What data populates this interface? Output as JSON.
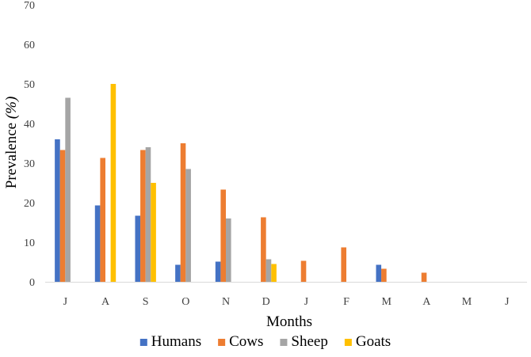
{
  "chart_data": {
    "type": "bar",
    "title": "",
    "xlabel": "Months",
    "ylabel_main": "Prevalence ",
    "ylabel_unit": "(%)",
    "ylim": [
      0,
      70
    ],
    "yticks": [
      0,
      10,
      20,
      30,
      40,
      50,
      60,
      70
    ],
    "grid": false,
    "legend_position": "bottom",
    "categories": [
      "J",
      "A",
      "S",
      "O",
      "N",
      "D",
      "J",
      "F",
      "M",
      "A",
      "M",
      "J"
    ],
    "series": [
      {
        "name": "Humans",
        "color": "#4472C4",
        "values": [
          36.0,
          19.3,
          16.7,
          4.3,
          5.1,
          0,
          0,
          0,
          4.3,
          0,
          0,
          0
        ]
      },
      {
        "name": "Cows",
        "color": "#ED7D31",
        "values": [
          33.3,
          31.3,
          33.3,
          35.0,
          23.3,
          16.3,
          5.3,
          8.7,
          3.3,
          2.3,
          0,
          0
        ]
      },
      {
        "name": "Sheep",
        "color": "#A5A5A5",
        "values": [
          46.5,
          0,
          34.0,
          28.5,
          16.0,
          5.7,
          0,
          0,
          0,
          0,
          0,
          0
        ]
      },
      {
        "name": "Goats",
        "color": "#FFC000",
        "values": [
          0,
          50.0,
          25.0,
          0,
          0,
          4.5,
          0,
          0,
          0,
          0,
          0,
          0
        ]
      }
    ]
  }
}
